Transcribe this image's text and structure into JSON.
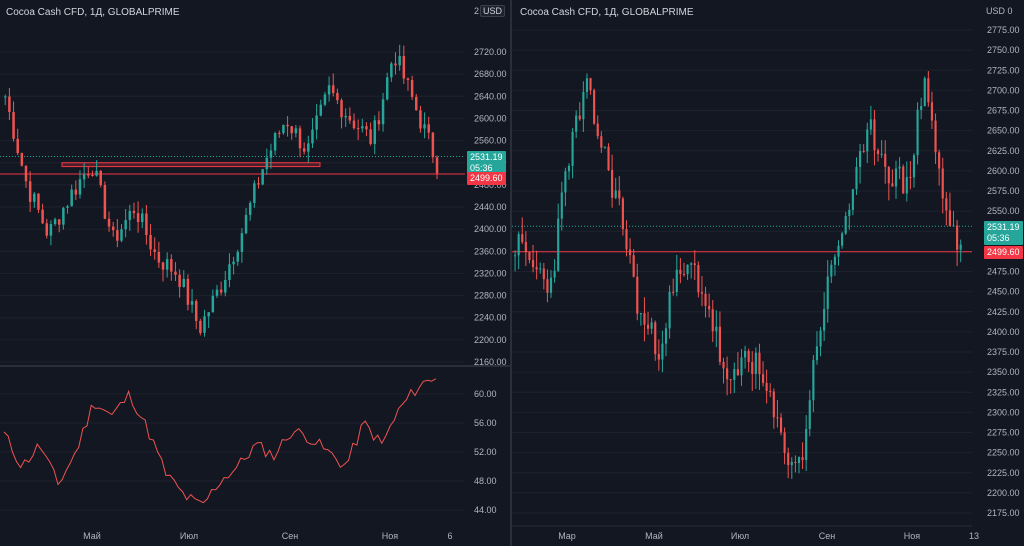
{
  "colors": {
    "bg": "#131722",
    "grid": "#1e222d",
    "up": "#26a69a",
    "down": "#ef5350",
    "text": "#b2b5be",
    "level": "#f23645"
  },
  "left_chart": {
    "title": "Cocoa Cash CFD, 1Д, GLOBALPRIME",
    "currency": "USD",
    "axis_top_partial": "2",
    "price_ticks": [
      "2720.00",
      "2680.00",
      "2640.00",
      "2600.00",
      "2560.00",
      "2520.00",
      "2480.00",
      "2440.00",
      "2400.00",
      "2360.00",
      "2320.00",
      "2280.00",
      "2240.00",
      "2200.00",
      "2160.00"
    ],
    "current_price": "2531.19",
    "countdown": "05:36",
    "level_price": "2499.60",
    "indicator_ticks": [
      "60.00",
      "56.00",
      "52.00",
      "48.00",
      "44.00"
    ],
    "time_labels": [
      "Май",
      "Июл",
      "Сен",
      "Ноя",
      "6"
    ]
  },
  "right_chart": {
    "title": "Cocoa Cash CFD, 1Д, GLOBALPRIME",
    "axis_top_partial": "2",
    "usd_partial": "USD 0",
    "price_ticks": [
      "2775.00",
      "2750.00",
      "2725.00",
      "2700.00",
      "2675.00",
      "2650.00",
      "2625.00",
      "2600.00",
      "2575.00",
      "2550.00",
      "2525.00",
      "2500.00",
      "2475.00",
      "2450.00",
      "2425.00",
      "2400.00",
      "2375.00",
      "2350.00",
      "2325.00",
      "2300.00",
      "2275.00",
      "2250.00",
      "2225.00",
      "2200.00",
      "2175.00"
    ],
    "current_price": "2531.19",
    "countdown": "05:36",
    "level_price": "2499.60",
    "time_labels": [
      "Мар",
      "Май",
      "Июл",
      "Сен",
      "Ноя",
      "13"
    ]
  }
}
